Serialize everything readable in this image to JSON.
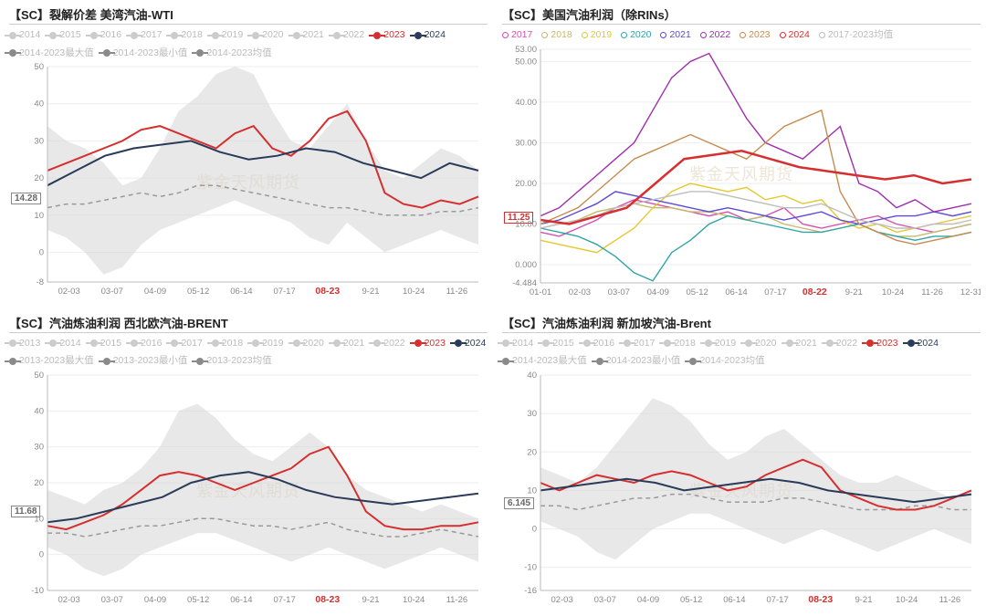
{
  "watermark": "紫金天风期货",
  "panels": [
    {
      "title": "【SC】裂解价差 美湾汽油-WTI",
      "legend": [
        {
          "label": "2014",
          "color": "#cccccc",
          "style": "line"
        },
        {
          "label": "2015",
          "color": "#cccccc",
          "style": "line"
        },
        {
          "label": "2016",
          "color": "#cccccc",
          "style": "line"
        },
        {
          "label": "2017",
          "color": "#cccccc",
          "style": "line"
        },
        {
          "label": "2018",
          "color": "#cccccc",
          "style": "line"
        },
        {
          "label": "2019",
          "color": "#cccccc",
          "style": "line"
        },
        {
          "label": "2020",
          "color": "#cccccc",
          "style": "line"
        },
        {
          "label": "2021",
          "color": "#cccccc",
          "style": "line"
        },
        {
          "label": "2022",
          "color": "#cccccc",
          "style": "line"
        },
        {
          "label": "2023",
          "color": "#d62f2f",
          "style": "line"
        },
        {
          "label": "2024",
          "color": "#2a3b5a",
          "style": "line"
        },
        {
          "label": "2014-2023最大值",
          "color": "#8a8a8a",
          "style": "line"
        },
        {
          "label": "2014-2023最小值",
          "color": "#8a8a8a",
          "style": "line"
        },
        {
          "label": "2014-2023均值",
          "color": "#8a8a8a",
          "style": "line"
        }
      ],
      "label_value": "14.28",
      "label_color": "dark",
      "ylim": [
        -8,
        50
      ],
      "yticks": [
        -8,
        0,
        10,
        20,
        30,
        40,
        50
      ],
      "xticks": [
        "02-03",
        "03-07",
        "04-09",
        "05-12",
        "06-14",
        "07-17",
        "08-23",
        "9-21",
        "10-24",
        "11-26"
      ],
      "xhl_index": 6,
      "area_max": [
        34,
        30,
        28,
        24,
        18,
        20,
        28,
        38,
        42,
        48,
        50,
        48,
        38,
        30,
        28,
        34,
        40,
        30,
        22,
        20,
        24,
        28,
        26,
        22
      ],
      "area_min": [
        6,
        4,
        0,
        -6,
        -4,
        2,
        6,
        8,
        10,
        12,
        14,
        12,
        10,
        8,
        4,
        2,
        8,
        4,
        0,
        2,
        4,
        6,
        4,
        2
      ],
      "mean": [
        12,
        13,
        13,
        14,
        15,
        16,
        15,
        16,
        18,
        18,
        17,
        16,
        15,
        14,
        13,
        12,
        12,
        11,
        10,
        10,
        10,
        11,
        11,
        12
      ],
      "s2023": [
        22,
        24,
        26,
        28,
        30,
        33,
        34,
        32,
        30,
        28,
        32,
        34,
        28,
        26,
        30,
        36,
        38,
        30,
        16,
        13,
        12,
        14,
        13,
        15
      ],
      "s2024": [
        18,
        22,
        26,
        28,
        29,
        30,
        27,
        25,
        26,
        28,
        27,
        24,
        22,
        20,
        24,
        22
      ],
      "colors": {
        "area": "#d6d6d6",
        "mean": "#9a9a9a",
        "s2023": "#d62f2f",
        "s2024": "#2a3b5a",
        "axis": "#bbbbbb"
      }
    },
    {
      "title": "【SC】美国汽油利润（除RINs）",
      "legend": [
        {
          "label": "2017",
          "color": "#d64fb0",
          "style": "hollow"
        },
        {
          "label": "2018",
          "color": "#c7b96a",
          "style": "hollow"
        },
        {
          "label": "2019",
          "color": "#e6c72f",
          "style": "hollow"
        },
        {
          "label": "2020",
          "color": "#2fa5a5",
          "style": "hollow"
        },
        {
          "label": "2021",
          "color": "#5b4bd6",
          "style": "hollow"
        },
        {
          "label": "2022",
          "color": "#a02fb0",
          "style": "hollow"
        },
        {
          "label": "2023",
          "color": "#c78b4f",
          "style": "hollow"
        },
        {
          "label": "2024",
          "color": "#d62f2f",
          "style": "hollow"
        },
        {
          "label": "2017-2023均值",
          "color": "#bdbdbd",
          "style": "hollow"
        }
      ],
      "label_value": "11.25",
      "label_color": "red",
      "ylim": [
        -4.484,
        53
      ],
      "yticks": [
        -4.484,
        0,
        10,
        20,
        30,
        40,
        50,
        53
      ],
      "xticks": [
        "01-01",
        "02-03",
        "03-07",
        "04-09",
        "05-12",
        "06-14",
        "07-17",
        "08-22",
        "9-21",
        "10-24",
        "11-26",
        "12-31"
      ],
      "xhl_index": 7,
      "series": {
        "2017": [
          8,
          7,
          9,
          11,
          14,
          16,
          15,
          14,
          13,
          12,
          13,
          11,
          12,
          14,
          10,
          9,
          10,
          11,
          12,
          10,
          9,
          8,
          9,
          10
        ],
        "2018": [
          9,
          10,
          11,
          13,
          14,
          15,
          14,
          14,
          13,
          13,
          12,
          11,
          12,
          10,
          9,
          8,
          9,
          10,
          8,
          7,
          7,
          8,
          9,
          10
        ],
        "2019": [
          6,
          5,
          4,
          3,
          6,
          9,
          14,
          18,
          20,
          19,
          18,
          19,
          16,
          17,
          15,
          16,
          11,
          9,
          10,
          8,
          9,
          10,
          11,
          12
        ],
        "2020": [
          9,
          8,
          7,
          5,
          2,
          -2,
          -4,
          3,
          6,
          10,
          12,
          11,
          10,
          9,
          8,
          8,
          9,
          10,
          8,
          7,
          6,
          7,
          7,
          8
        ],
        "2021": [
          10,
          11,
          13,
          15,
          18,
          17,
          16,
          15,
          14,
          13,
          14,
          13,
          12,
          11,
          12,
          13,
          11,
          10,
          11,
          12,
          12,
          13,
          12,
          13
        ],
        "2022": [
          12,
          14,
          18,
          22,
          26,
          30,
          38,
          46,
          50,
          52,
          44,
          36,
          30,
          28,
          26,
          30,
          34,
          20,
          18,
          14,
          16,
          13,
          14,
          15
        ],
        "2023": [
          10,
          12,
          14,
          18,
          22,
          26,
          28,
          30,
          32,
          30,
          28,
          26,
          30,
          34,
          36,
          38,
          18,
          10,
          8,
          6,
          5,
          6,
          7,
          8
        ],
        "mean": [
          9,
          10,
          11,
          12,
          14,
          15,
          16,
          17,
          18,
          18,
          17,
          16,
          15,
          14,
          14,
          15,
          13,
          11,
          10,
          9,
          9,
          10,
          10,
          11
        ],
        "2024": [
          11,
          10,
          12,
          14,
          20,
          26,
          27,
          28,
          26,
          24,
          23,
          22,
          21,
          22,
          20,
          21
        ]
      },
      "series_colors": {
        "2017": "#d64fb0",
        "2018": "#c7b96a",
        "2019": "#e6c72f",
        "2020": "#2fa5a5",
        "2021": "#5b4bd6",
        "2022": "#a02fb0",
        "2023": "#c78b4f",
        "2024": "#d62f2f",
        "mean": "#bdbdbd"
      }
    },
    {
      "title": "【SC】汽油炼油利润 西北欧汽油-BRENT",
      "legend": [
        {
          "label": "2013",
          "color": "#cccccc",
          "style": "line"
        },
        {
          "label": "2014",
          "color": "#cccccc",
          "style": "line"
        },
        {
          "label": "2015",
          "color": "#cccccc",
          "style": "line"
        },
        {
          "label": "2016",
          "color": "#cccccc",
          "style": "line"
        },
        {
          "label": "2017",
          "color": "#cccccc",
          "style": "line"
        },
        {
          "label": "2018",
          "color": "#cccccc",
          "style": "line"
        },
        {
          "label": "2019",
          "color": "#cccccc",
          "style": "line"
        },
        {
          "label": "2020",
          "color": "#cccccc",
          "style": "line"
        },
        {
          "label": "2021",
          "color": "#cccccc",
          "style": "line"
        },
        {
          "label": "2022",
          "color": "#cccccc",
          "style": "line"
        },
        {
          "label": "2023",
          "color": "#d62f2f",
          "style": "line"
        },
        {
          "label": "2024",
          "color": "#2a3b5a",
          "style": "line"
        },
        {
          "label": "2013-2023最大值",
          "color": "#8a8a8a",
          "style": "line"
        },
        {
          "label": "2013-2023最小值",
          "color": "#8a8a8a",
          "style": "line"
        },
        {
          "label": "2013-2023均值",
          "color": "#8a8a8a",
          "style": "line"
        }
      ],
      "label_value": "11.68",
      "label_color": "dark",
      "ylim": [
        -10,
        50
      ],
      "yticks": [
        -10,
        0,
        10,
        20,
        30,
        40,
        50
      ],
      "xticks": [
        "02-03",
        "03-07",
        "04-09",
        "05-12",
        "06-14",
        "07-17",
        "08-23",
        "9-21",
        "10-24",
        "11-26"
      ],
      "xhl_index": 6,
      "area_max": [
        18,
        16,
        14,
        18,
        20,
        24,
        30,
        40,
        42,
        38,
        32,
        28,
        26,
        30,
        34,
        30,
        22,
        18,
        16,
        14,
        12,
        14,
        12,
        10
      ],
      "area_min": [
        2,
        0,
        -4,
        -6,
        -4,
        0,
        2,
        4,
        6,
        6,
        4,
        2,
        0,
        -2,
        0,
        2,
        0,
        -2,
        -4,
        -2,
        0,
        2,
        0,
        -2
      ],
      "mean": [
        6,
        6,
        5,
        6,
        7,
        8,
        8,
        9,
        10,
        10,
        9,
        8,
        8,
        7,
        8,
        9,
        7,
        6,
        5,
        5,
        6,
        7,
        6,
        5
      ],
      "s2023": [
        8,
        7,
        9,
        11,
        14,
        18,
        22,
        23,
        22,
        20,
        18,
        20,
        22,
        24,
        28,
        30,
        22,
        12,
        8,
        7,
        7,
        8,
        8,
        9
      ],
      "s2024": [
        9,
        10,
        12,
        14,
        16,
        20,
        22,
        23,
        21,
        18,
        16,
        15,
        14,
        15,
        16,
        17
      ],
      "colors": {
        "area": "#d6d6d6",
        "mean": "#9a9a9a",
        "s2023": "#d62f2f",
        "s2024": "#2a3b5a",
        "axis": "#bbbbbb"
      }
    },
    {
      "title": "【SC】汽油炼油利润 新加坡汽油-Brent",
      "legend": [
        {
          "label": "2014",
          "color": "#cccccc",
          "style": "line"
        },
        {
          "label": "2015",
          "color": "#cccccc",
          "style": "line"
        },
        {
          "label": "2016",
          "color": "#cccccc",
          "style": "line"
        },
        {
          "label": "2017",
          "color": "#cccccc",
          "style": "line"
        },
        {
          "label": "2018",
          "color": "#cccccc",
          "style": "line"
        },
        {
          "label": "2019",
          "color": "#cccccc",
          "style": "line"
        },
        {
          "label": "2020",
          "color": "#cccccc",
          "style": "line"
        },
        {
          "label": "2021",
          "color": "#cccccc",
          "style": "line"
        },
        {
          "label": "2022",
          "color": "#cccccc",
          "style": "line"
        },
        {
          "label": "2023",
          "color": "#d62f2f",
          "style": "line"
        },
        {
          "label": "2024",
          "color": "#2a3b5a",
          "style": "line"
        },
        {
          "label": "2014-2023最大值",
          "color": "#8a8a8a",
          "style": "line"
        },
        {
          "label": "2014-2023最小值",
          "color": "#8a8a8a",
          "style": "line"
        },
        {
          "label": "2014-2023均值",
          "color": "#8a8a8a",
          "style": "line"
        }
      ],
      "label_value": "6.145",
      "label_color": "dark",
      "ylim": [
        -16,
        40
      ],
      "yticks": [
        -16,
        -10,
        0,
        10,
        20,
        30,
        40
      ],
      "xticks": [
        "02-03",
        "03-07",
        "04-09",
        "05-12",
        "06-14",
        "07-17",
        "08-23",
        "9-21",
        "10-24",
        "11-26"
      ],
      "xhl_index": 6,
      "area_max": [
        16,
        14,
        12,
        16,
        22,
        28,
        34,
        32,
        28,
        22,
        18,
        20,
        24,
        26,
        22,
        18,
        14,
        12,
        12,
        14,
        12,
        10,
        8,
        10
      ],
      "area_min": [
        2,
        0,
        -2,
        -6,
        -8,
        -4,
        0,
        2,
        4,
        4,
        2,
        0,
        -2,
        -4,
        -2,
        0,
        -2,
        -4,
        -6,
        -4,
        -2,
        0,
        -2,
        -4
      ],
      "mean": [
        6,
        6,
        5,
        6,
        7,
        8,
        8,
        9,
        9,
        8,
        7,
        7,
        7,
        8,
        8,
        7,
        6,
        5,
        5,
        5,
        6,
        6,
        5,
        5
      ],
      "s2023": [
        12,
        10,
        12,
        14,
        13,
        12,
        14,
        15,
        14,
        12,
        10,
        11,
        14,
        16,
        18,
        16,
        10,
        8,
        6,
        5,
        5,
        6,
        8,
        10
      ],
      "s2024": [
        10,
        11,
        12,
        13,
        12,
        10,
        11,
        12,
        13,
        12,
        10,
        9,
        8,
        7,
        8,
        9
      ],
      "colors": {
        "area": "#d6d6d6",
        "mean": "#9a9a9a",
        "s2023": "#d62f2f",
        "s2024": "#2a3b5a",
        "axis": "#bbbbbb"
      }
    }
  ]
}
